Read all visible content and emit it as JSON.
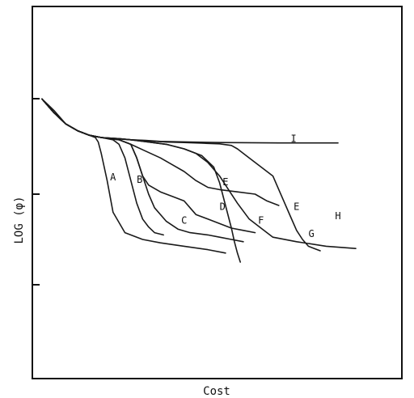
{
  "chart_data": {
    "type": "line",
    "xlabel": "Cost",
    "ylabel": "LOG (φ)",
    "grid": false,
    "legend": "none",
    "xlim": [
      0,
      100
    ],
    "ylim": [
      0,
      100
    ],
    "series": [
      {
        "name": "I",
        "x": [
          0,
          4,
          8,
          12,
          16,
          20,
          25,
          30,
          35,
          40,
          50,
          60,
          70,
          80,
          86,
          92,
          100
        ],
        "y": [
          92,
          87,
          81,
          78,
          76,
          75,
          74.5,
          74,
          73.7,
          73.3,
          73,
          72.8,
          72.7,
          72.6,
          72.6,
          72.6,
          72.6
        ]
      },
      {
        "name": "A",
        "x": [
          0,
          4,
          8,
          12,
          16,
          18,
          19,
          20,
          22,
          24,
          28,
          34,
          40,
          48,
          56,
          62
        ],
        "y": [
          92,
          86,
          81,
          78,
          76,
          75,
          73,
          68,
          56,
          42,
          33,
          30,
          28.5,
          27,
          25.5,
          24
        ]
      },
      {
        "name": "B",
        "x": [
          0,
          4,
          8,
          12,
          16,
          20,
          24,
          26,
          28,
          30,
          32,
          34,
          36,
          38,
          41
        ],
        "y": [
          92,
          86,
          81,
          78,
          76,
          75,
          74,
          72,
          66,
          56,
          46,
          39,
          35.5,
          33,
          32
        ]
      },
      {
        "name": "C",
        "x": [
          0,
          4,
          8,
          12,
          16,
          20,
          26,
          30,
          32,
          34,
          36,
          38,
          42,
          46,
          50,
          56,
          60,
          64,
          68
        ],
        "y": [
          92,
          86,
          81,
          78,
          76,
          75,
          74,
          72,
          66,
          58,
          50,
          44,
          38,
          34.5,
          33,
          32,
          31,
          30,
          29
        ]
      },
      {
        "name": "D",
        "x": [
          0,
          4,
          8,
          12,
          16,
          20,
          26,
          30,
          32,
          34,
          36,
          40,
          44,
          48,
          50,
          52,
          56,
          60,
          64,
          68,
          72
        ],
        "y": [
          92,
          86,
          81,
          78,
          76,
          75,
          74,
          72,
          66,
          58,
          54,
          51,
          49,
          47,
          44,
          41,
          39,
          37,
          35,
          34,
          33
        ]
      },
      {
        "name": "E",
        "x": [
          0,
          4,
          8,
          12,
          16,
          20,
          26,
          30,
          35,
          40,
          44,
          48,
          52,
          56,
          60,
          66,
          72,
          76,
          80
        ],
        "y": [
          92,
          86,
          81,
          78,
          76,
          75,
          74,
          72,
          69,
          66,
          63,
          60,
          56,
          53,
          52,
          51,
          50,
          47,
          45
        ]
      },
      {
        "name": "F",
        "x": [
          0,
          4,
          8,
          12,
          16,
          20,
          26,
          30,
          36,
          42,
          48,
          54,
          58,
          60,
          62,
          64,
          65,
          66,
          67
        ],
        "y": [
          92,
          86,
          81,
          78,
          76,
          75,
          74.5,
          74,
          73,
          72,
          70,
          67,
          62,
          55,
          45,
          35,
          29,
          24,
          20
        ]
      },
      {
        "name": "G",
        "x": [
          0,
          4,
          8,
          12,
          16,
          20,
          26,
          30,
          36,
          42,
          48,
          52,
          56,
          60,
          63,
          66,
          70,
          74,
          78,
          86,
          96,
          106
        ],
        "y": [
          92,
          86,
          81,
          78,
          76,
          75,
          74.5,
          74,
          73,
          72,
          70,
          68,
          64,
          58,
          52,
          46,
          39,
          35,
          31,
          29,
          27,
          26
        ]
      },
      {
        "name": "H",
        "x": [
          0,
          4,
          8,
          12,
          16,
          20,
          26,
          30,
          36,
          42,
          48,
          54,
          60,
          64,
          66,
          70,
          74,
          78,
          80,
          82,
          84,
          86,
          88,
          90,
          92,
          94
        ],
        "y": [
          92,
          86,
          81,
          78,
          76,
          75,
          74.5,
          74,
          73.5,
          73,
          72.8,
          72.5,
          72.2,
          71.5,
          70,
          66,
          62,
          58,
          52,
          46,
          40,
          34,
          30,
          27,
          26,
          25
        ]
      }
    ],
    "curve_labels": [
      {
        "text": "A",
        "x": 24,
        "y": 56
      },
      {
        "text": "B",
        "x": 33,
        "y": 55
      },
      {
        "text": "C",
        "x": 48,
        "y": 37
      },
      {
        "text": "D",
        "x": 61,
        "y": 43
      },
      {
        "text": "E",
        "x": 62,
        "y": 54
      },
      {
        "text": "E",
        "x": 86,
        "y": 43
      },
      {
        "text": "F",
        "x": 74,
        "y": 37
      },
      {
        "text": "G",
        "x": 91,
        "y": 31
      },
      {
        "text": "H",
        "x": 100,
        "y": 39
      },
      {
        "text": "I",
        "x": 85,
        "y": 73
      }
    ]
  }
}
